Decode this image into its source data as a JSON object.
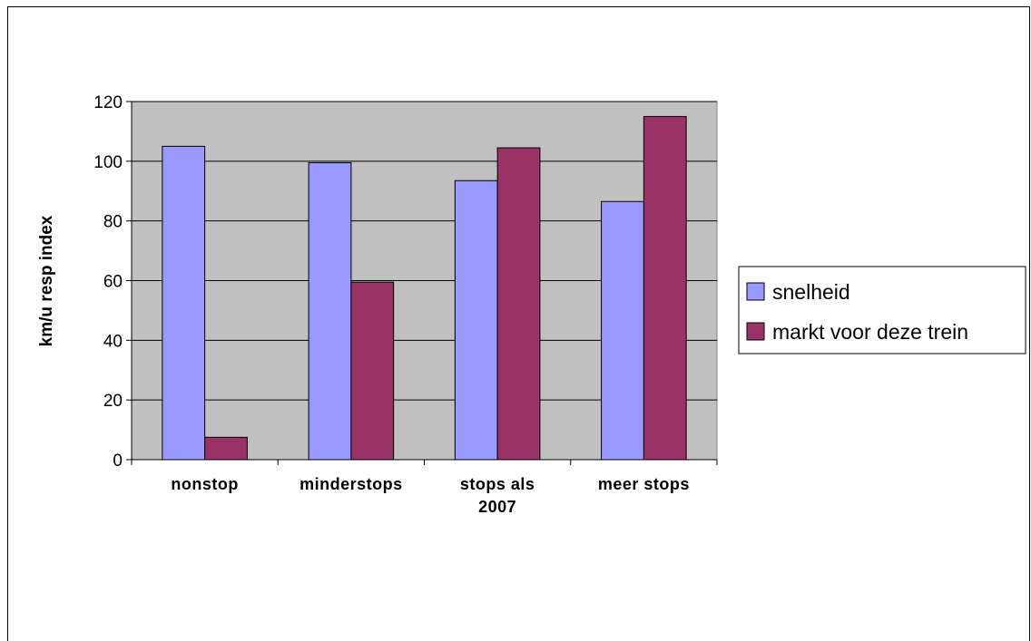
{
  "chart_data": {
    "type": "bar",
    "categories": [
      [
        "nonstop"
      ],
      [
        "minderstops"
      ],
      [
        "stops als",
        "2007"
      ],
      [
        "meer stops"
      ]
    ],
    "series": [
      {
        "name": "snelheid",
        "color": "#9999ff",
        "values": [
          105,
          99.5,
          93.5,
          86.5
        ]
      },
      {
        "name": "markt voor deze trein",
        "color": "#993366",
        "values": [
          7.5,
          59.5,
          104.5,
          115
        ]
      }
    ],
    "ylabel": "km/u  resp index",
    "xlabel": "",
    "ylim": [
      0,
      120
    ],
    "yticks": [
      0,
      20,
      40,
      60,
      80,
      100,
      120
    ],
    "grid": true,
    "plot_background": "#c0c0c0",
    "legend": "right"
  }
}
